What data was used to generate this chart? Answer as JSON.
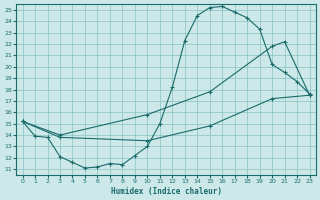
{
  "xlabel": "Humidex (Indice chaleur)",
  "background_color": "#cce8e8",
  "line_color": "#1a6b6b",
  "xlim": [
    -0.5,
    23.5
  ],
  "ylim": [
    10.5,
    25.5
  ],
  "xticks": [
    0,
    1,
    2,
    3,
    4,
    5,
    6,
    7,
    8,
    9,
    10,
    11,
    12,
    13,
    14,
    15,
    16,
    17,
    18,
    19,
    20,
    21,
    22,
    23
  ],
  "yticks": [
    11,
    12,
    13,
    14,
    15,
    16,
    17,
    18,
    19,
    20,
    21,
    22,
    23,
    24,
    25
  ],
  "line1_x": [
    0,
    1,
    2,
    3,
    4,
    5,
    6,
    7,
    8,
    9,
    10,
    11,
    12,
    13,
    14,
    15,
    16,
    17,
    18,
    19,
    20,
    21,
    22,
    23
  ],
  "line1_y": [
    15.2,
    13.9,
    13.8,
    12.1,
    11.6,
    11.1,
    11.2,
    11.5,
    11.4,
    12.2,
    13.0,
    15.0,
    18.2,
    22.3,
    24.5,
    25.2,
    25.3,
    24.8,
    24.3,
    23.3,
    20.2,
    19.5,
    18.7,
    17.6
  ],
  "line2_x": [
    0,
    3,
    10,
    15,
    20,
    21,
    23
  ],
  "line2_y": [
    15.2,
    14.0,
    15.8,
    17.8,
    21.8,
    22.2,
    17.5
  ],
  "line3_x": [
    0,
    3,
    10,
    15,
    20,
    23
  ],
  "line3_y": [
    15.2,
    13.8,
    13.5,
    14.8,
    17.2,
    17.5
  ]
}
